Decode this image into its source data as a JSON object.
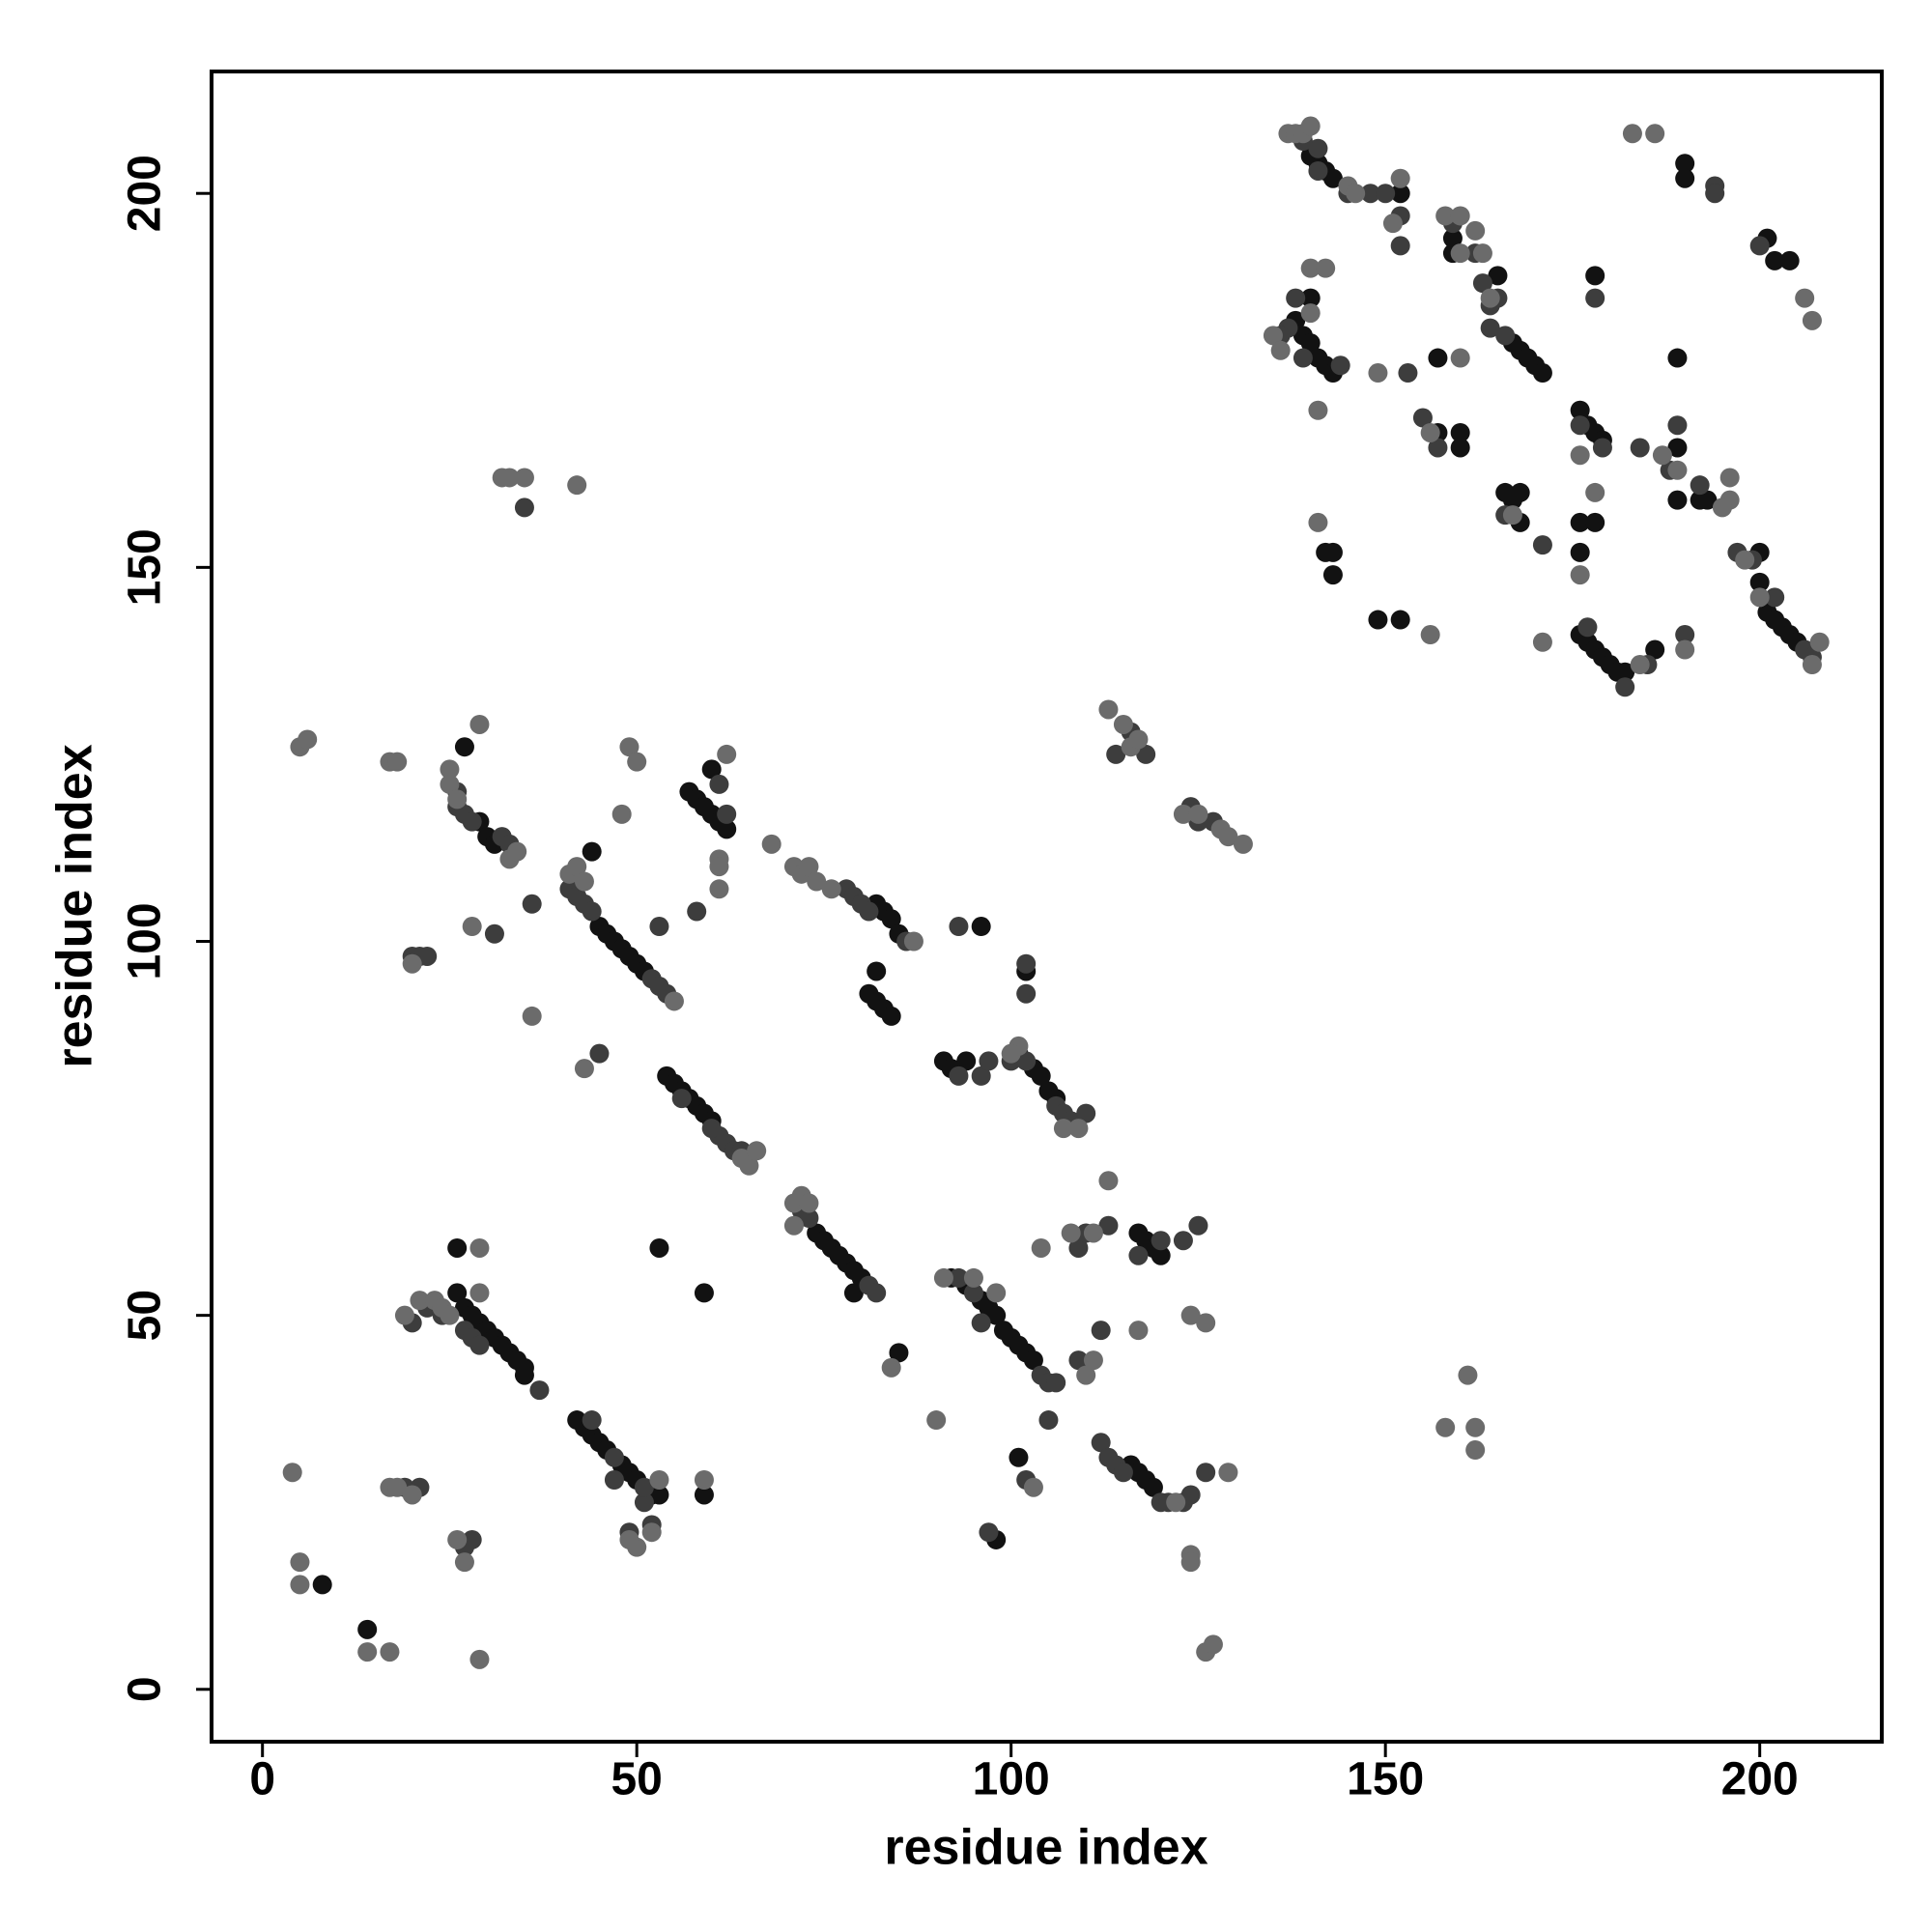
{
  "chart_data": {
    "type": "scatter",
    "xlabel": "residue index",
    "ylabel": "residue index",
    "xlim": [
      -6.8,
      216.3
    ],
    "ylim": [
      -7,
      216.3
    ],
    "xticks": [
      0,
      50,
      100,
      150,
      200
    ],
    "yticks": [
      0,
      50,
      100,
      150,
      200
    ],
    "grid": false,
    "series": [
      {
        "color": "#121212",
        "x": [
          8,
          14,
          26,
          27,
          28,
          29,
          30,
          31,
          32,
          33,
          34,
          35,
          26,
          42,
          43,
          44,
          45,
          46,
          48,
          49,
          50,
          52,
          53,
          53,
          59,
          59,
          54,
          55,
          56,
          57,
          58,
          59,
          60,
          74,
          75,
          76,
          77,
          78,
          79,
          80,
          79,
          85,
          92,
          94,
          96,
          97,
          98,
          99,
          100,
          101,
          102,
          103,
          101,
          98,
          91,
          92,
          94,
          101,
          103,
          104,
          105,
          106,
          117,
          118,
          119,
          120,
          116,
          117,
          118,
          119,
          35,
          27,
          29,
          30,
          31,
          44,
          45,
          46,
          47,
          48,
          49,
          50,
          51,
          57,
          58,
          59,
          60,
          61,
          62,
          60,
          82,
          83,
          84,
          85,
          81,
          82,
          83,
          84,
          82,
          96,
          102,
          140,
          138,
          139,
          140,
          141,
          142,
          143,
          140,
          141,
          142,
          143,
          152,
          159,
          159,
          165,
          167,
          168,
          169,
          170,
          171,
          157,
          157,
          160,
          160,
          166,
          167,
          168,
          168,
          142,
          143,
          143,
          149,
          152,
          176,
          177,
          178,
          179,
          178,
          176,
          178,
          176,
          176,
          177,
          178,
          179,
          180,
          181,
          182,
          186,
          189,
          190,
          190,
          189,
          189,
          192,
          193,
          200,
          200,
          201,
          202,
          203,
          204,
          205,
          201,
          202,
          204
        ],
        "values": [
          14,
          8,
          53,
          51,
          50,
          49,
          48,
          47,
          46,
          45,
          44,
          43,
          59,
          36,
          35,
          34,
          33,
          32,
          30,
          29,
          28,
          26,
          26,
          59,
          53,
          26,
          82,
          81,
          80,
          79,
          78,
          77,
          76,
          61,
          60,
          59,
          58,
          57,
          56,
          55,
          53,
          45,
          55,
          54,
          52,
          51,
          50,
          48,
          47,
          46,
          45,
          44,
          31,
          20,
          84,
          83,
          84,
          85,
          83,
          82,
          80,
          79,
          61,
          60,
          59,
          58,
          30,
          29,
          28,
          27,
          42,
          126,
          116,
          114,
          113,
          112,
          102,
          101,
          100,
          99,
          98,
          97,
          96,
          120,
          119,
          118,
          117,
          116,
          115,
          123,
          105,
          104,
          103,
          101,
          93,
          92,
          91,
          90,
          96,
          102,
          96,
          186,
          183,
          181,
          180,
          178,
          177,
          176,
          205,
          204,
          203,
          202,
          200,
          194,
          192,
          189,
          180,
          179,
          178,
          177,
          176,
          178,
          168,
          168,
          166,
          160,
          159,
          160,
          156,
          152,
          152,
          149,
          143,
          143,
          171,
          169,
          168,
          167,
          189,
          156,
          156,
          152,
          141,
          140,
          139,
          138,
          137,
          136,
          136,
          139,
          178,
          204,
          202,
          166,
          159,
          159,
          159,
          152,
          148,
          144,
          143,
          142,
          141,
          140,
          194,
          191,
          191
        ]
      },
      {
        "color": "#3d3d3d",
        "x": [
          20,
          21,
          22,
          26,
          26,
          27,
          28,
          32,
          33,
          31,
          41,
          42,
          43,
          44,
          52,
          53,
          54,
          61,
          62,
          58,
          53,
          45,
          78,
          79,
          80,
          81,
          86,
          93,
          102,
          102,
          96,
          97,
          93,
          100,
          102,
          106,
          107,
          108,
          110,
          61,
          62,
          63,
          64,
          72,
          73,
          81,
          82,
          93,
          95,
          96,
          104,
          105,
          106,
          109,
          36,
          47,
          51,
          52,
          49,
          28,
          27,
          21,
          19,
          24,
          22,
          20,
          27,
          28,
          29,
          37,
          44,
          47,
          51,
          56,
          60,
          105,
          102,
          97,
          112,
          113,
          114,
          115,
          120,
          121,
          123,
          124,
          126,
          123,
          125,
          109,
          112,
          113,
          110,
          117,
          120,
          114,
          116,
          118,
          124,
          125,
          127,
          35,
          137,
          136,
          138,
          139,
          144,
          141,
          145,
          148,
          150,
          152,
          152,
          153,
          155,
          157,
          159,
          162,
          163,
          164,
          165,
          164,
          166,
          166,
          176,
          179,
          184,
          188,
          192,
          194,
          194,
          200,
          199,
          197,
          202,
          206,
          207,
          190,
          177,
          185,
          182,
          178,
          189,
          171,
          141,
          139
        ],
        "values": [
          98,
          98,
          98,
          120,
          118,
          117,
          116,
          114,
          113,
          101,
          107,
          106,
          105,
          104,
          95,
          94,
          93,
          121,
          117,
          104,
          102,
          85,
          107,
          106,
          105,
          104,
          100,
          102,
          93,
          97,
          82,
          84,
          82,
          84,
          84,
          78,
          77,
          76,
          77,
          74,
          73,
          72,
          72,
          64,
          63,
          54,
          53,
          55,
          53,
          49,
          42,
          41,
          41,
          44,
          105,
          31,
          25,
          22,
          21,
          20,
          19,
          27,
          27,
          50,
          51,
          49,
          48,
          47,
          46,
          40,
          36,
          28,
          27,
          79,
          75,
          36,
          28,
          21,
          33,
          31,
          30,
          29,
          25,
          25,
          25,
          26,
          29,
          60,
          62,
          59,
          48,
          62,
          61,
          58,
          60,
          125,
          128,
          125,
          118,
          116,
          116,
          158,
          182,
          181,
          186,
          178,
          177,
          203,
          200,
          200,
          200,
          197,
          193,
          176,
          170,
          166,
          196,
          192,
          188,
          185,
          186,
          182,
          181,
          157,
          169,
          166,
          166,
          163,
          161,
          201,
          200,
          193,
          151,
          152,
          146,
          139,
          138,
          141,
          142,
          137,
          134,
          186,
          169,
          153,
          206,
          207
        ]
      },
      {
        "color": "#6b6b6b",
        "x": [
          4,
          5,
          5,
          14,
          17,
          29,
          17,
          18,
          20,
          27,
          26,
          19,
          21,
          23,
          29,
          29,
          24,
          25,
          50,
          49,
          52,
          53,
          59,
          43,
          36,
          28,
          20,
          5,
          6,
          17,
          18,
          25,
          25,
          26,
          29,
          33,
          34,
          32,
          33,
          35,
          42,
          41,
          42,
          43,
          55,
          48,
          49,
          50,
          61,
          61,
          61,
          62,
          68,
          64,
          65,
          66,
          71,
          72,
          73,
          74,
          76,
          87,
          71,
          71,
          72,
          73,
          84,
          90,
          103,
          104,
          108,
          111,
          113,
          117,
          124,
          126,
          124,
          124,
          126,
          127,
          129,
          122,
          110,
          111,
          107,
          109,
          101,
          100,
          91,
          95,
          98,
          113,
          115,
          116,
          117,
          123,
          125,
          128,
          129,
          131,
          158,
          161,
          162,
          162,
          137,
          138,
          139,
          140,
          145,
          146,
          152,
          151,
          140,
          142,
          135,
          136,
          141,
          141,
          140,
          149,
          156,
          158,
          160,
          162,
          160,
          163,
          164,
          160,
          156,
          167,
          171,
          176,
          178,
          183,
          186,
          187,
          189,
          196,
          196,
          195,
          198,
          200,
          206,
          207,
          208,
          207,
          190,
          184,
          176
        ],
        "values": [
          29,
          17,
          14,
          5,
          5,
          4,
          27,
          27,
          26,
          17,
          20,
          50,
          52,
          52,
          53,
          59,
          51,
          50,
          19,
          20,
          21,
          28,
          28,
          83,
          90,
          102,
          97,
          126,
          127,
          124,
          124,
          123,
          121,
          119,
          129,
          111,
          112,
          162,
          162,
          162,
          161,
          109,
          110,
          108,
          92,
          117,
          126,
          124,
          107,
          111,
          110,
          125,
          113,
          71,
          70,
          72,
          110,
          109,
          110,
          108,
          107,
          100,
          62,
          65,
          66,
          65,
          43,
          36,
          27,
          59,
          61,
          61,
          68,
          48,
          50,
          49,
          18,
          17,
          5,
          6,
          29,
          25,
          42,
          44,
          75,
          75,
          86,
          85,
          55,
          55,
          53,
          131,
          129,
          126,
          127,
          117,
          117,
          115,
          114,
          113,
          35,
          42,
          35,
          32,
          208,
          208,
          208,
          209,
          201,
          200,
          202,
          196,
          190,
          190,
          181,
          179,
          171,
          156,
          184,
          176,
          141,
          197,
          197,
          195,
          192,
          192,
          186,
          178,
          168,
          157,
          140,
          149,
          160,
          208,
          208,
          165,
          163,
          162,
          159,
          158,
          151,
          146,
          186,
          183,
          140,
          137,
          139,
          137,
          165
        ]
      }
    ]
  }
}
